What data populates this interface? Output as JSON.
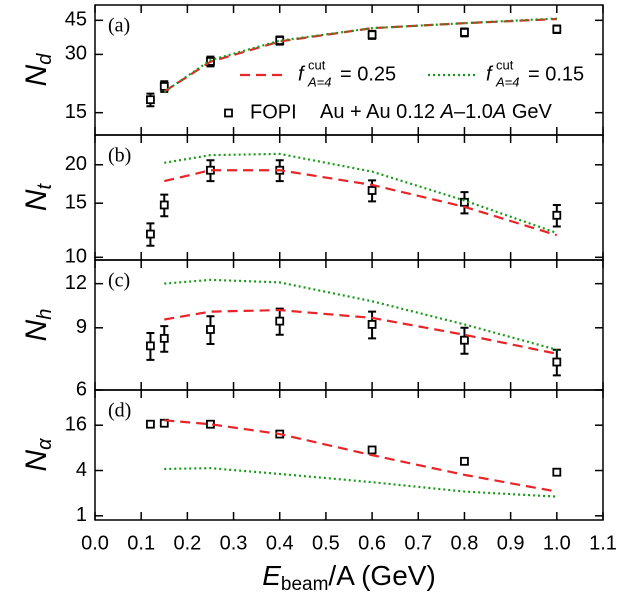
{
  "chart_data": [
    {
      "type": "line",
      "panel_label": "(a)",
      "ylabel": {
        "main": "N",
        "sub": "d"
      },
      "yscale": "log",
      "ylim": [
        11.5,
        54
      ],
      "yticks": [
        15,
        30,
        45
      ],
      "series": [
        {
          "name": "FOPI",
          "marker": "square",
          "color": "#000000",
          "x": [
            0.12,
            0.15,
            0.25,
            0.4,
            0.6,
            0.8,
            1.0
          ],
          "values": [
            17.5,
            20.5,
            27.6,
            35.4,
            37.9,
            39,
            40.5
          ],
          "errors": [
            1.3,
            1.3,
            1.6,
            1.7,
            1.8,
            1.8,
            1.8
          ]
        },
        {
          "name": "= 0.25",
          "name_symbol": {
            "base": "f",
            "sup": "cut",
            "sub": "A=4"
          },
          "dash": "dashed",
          "color": "#e8262a",
          "x": [
            0.15,
            0.25,
            0.4,
            0.6,
            0.8,
            1.0
          ],
          "values": [
            19.3,
            27.5,
            35,
            41,
            43.5,
            45.7
          ]
        },
        {
          "name": "= 0.15",
          "name_symbol": {
            "base": "f",
            "sup": "cut",
            "sub": "A=4"
          },
          "dash": "dotted",
          "color": "#1a9a1a",
          "x": [
            0.15,
            0.25,
            0.4,
            0.6,
            0.8,
            1.0
          ],
          "values": [
            19.2,
            28,
            35.3,
            41,
            43.5,
            46
          ]
        }
      ],
      "annotation": [
        {
          "text": "Au + Au 0.12 "
        },
        {
          "text": "A",
          "italic": true
        },
        {
          "text": "–1.0"
        },
        {
          "text": "A",
          "italic": true
        },
        {
          "text": " GeV"
        }
      ]
    },
    {
      "type": "line",
      "panel_label": "(b)",
      "ylabel": {
        "main": "N",
        "sub": "t"
      },
      "yscale": "log",
      "ylim": [
        9.8,
        25
      ],
      "yticks": [
        10,
        15,
        20
      ],
      "series": [
        {
          "marker": "square",
          "color": "#000000",
          "x": [
            0.12,
            0.15,
            0.25,
            0.4,
            0.6,
            0.8,
            1.0
          ],
          "values": [
            11.9,
            14.8,
            19.2,
            19.2,
            16.5,
            15.1,
            13.7
          ],
          "errors": [
            1.0,
            1.2,
            1.5,
            1.5,
            1.3,
            1.2,
            1.1
          ]
        },
        {
          "dash": "dashed",
          "color": "#e8262a",
          "x": [
            0.15,
            0.25,
            0.4,
            0.6,
            0.8,
            1.0
          ],
          "values": [
            17.7,
            19.2,
            19.2,
            17.2,
            14.6,
            11.8
          ]
        },
        {
          "dash": "dotted",
          "color": "#1a9a1a",
          "x": [
            0.15,
            0.25,
            0.4,
            0.6,
            0.8,
            1.0
          ],
          "values": [
            20.3,
            21.5,
            21.7,
            19.0,
            15.3,
            12.0
          ]
        }
      ]
    },
    {
      "type": "line",
      "panel_label": "(c)",
      "ylabel": {
        "main": "N",
        "sub": "h"
      },
      "yscale": "log",
      "ylim": [
        6,
        14
      ],
      "yticks": [
        6,
        9,
        12
      ],
      "series": [
        {
          "marker": "square",
          "color": "#000000",
          "x": [
            0.12,
            0.15,
            0.25,
            0.4,
            0.6,
            0.8,
            1.0
          ],
          "values": [
            8.0,
            8.4,
            8.9,
            9.4,
            9.2,
            8.3,
            7.2
          ],
          "errors": [
            0.7,
            0.7,
            0.8,
            0.8,
            0.8,
            0.7,
            0.6
          ]
        },
        {
          "dash": "dashed",
          "color": "#e8262a",
          "x": [
            0.15,
            0.25,
            0.4,
            0.6,
            0.8,
            1.0
          ],
          "values": [
            9.5,
            10.0,
            10.1,
            9.6,
            8.6,
            7.6
          ]
        },
        {
          "dash": "dotted",
          "color": "#1a9a1a",
          "x": [
            0.15,
            0.25,
            0.4,
            0.6,
            0.8,
            1.0
          ],
          "values": [
            12.0,
            12.3,
            12.1,
            10.7,
            9.2,
            7.8
          ]
        }
      ]
    },
    {
      "type": "line",
      "panel_label": "(d)",
      "ylabel": {
        "main": "N",
        "sub": "α"
      },
      "yscale": "log",
      "ylim": [
        0.88,
        47
      ],
      "yticks": [
        1,
        4,
        16
      ],
      "series": [
        {
          "marker": "square",
          "color": "#000000",
          "x": [
            0.12,
            0.15,
            0.25,
            0.4,
            0.6,
            0.8,
            1.0
          ],
          "values": [
            16.5,
            17,
            16.5,
            12.2,
            7.5,
            5.3,
            3.8
          ],
          "errors": [
            1.2,
            1.2,
            1.2,
            0.9,
            0.6,
            0.4,
            0.3
          ]
        },
        {
          "dash": "dashed",
          "color": "#e8262a",
          "x": [
            0.15,
            0.25,
            0.4,
            0.6,
            0.8,
            1.0
          ],
          "values": [
            18.6,
            16.5,
            12.2,
            6.4,
            3.5,
            2.1
          ]
        },
        {
          "dash": "dotted",
          "color": "#1a9a1a",
          "x": [
            0.15,
            0.25,
            0.4,
            0.6,
            0.8,
            1.0
          ],
          "values": [
            4.2,
            4.3,
            3.6,
            2.8,
            2.1,
            1.8
          ]
        }
      ],
      "xlim": [
        0,
        1.1
      ],
      "xticks": [
        {
          "value": 0,
          "label": "0.0"
        },
        0.1,
        0.2,
        0.3,
        0.4,
        0.5,
        0.6,
        0.7,
        0.8,
        0.9,
        {
          "value": 1,
          "label": "1.0"
        },
        1.1
      ],
      "xlabel": {
        "main": "E",
        "sub": "beam",
        "rest": "/A  (GeV)"
      }
    }
  ]
}
